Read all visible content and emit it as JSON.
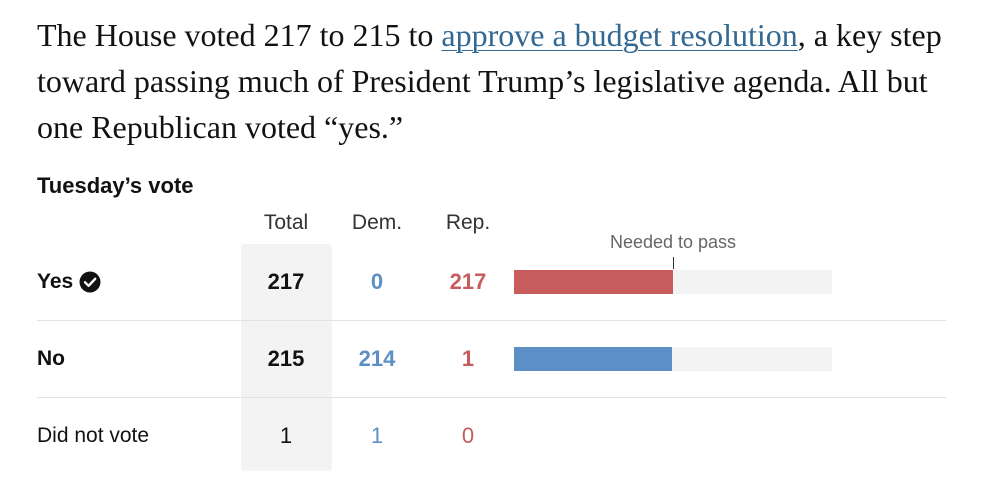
{
  "intro": {
    "before_link": "The House voted 217 to 215 to ",
    "link_text": "approve a budget resolution",
    "after_link": ", a key step toward passing much of President Trump’s legislative agenda. All but one Republican voted “yes.”"
  },
  "table": {
    "title": "Tuesday’s vote",
    "columns": {
      "total": "Total",
      "dem": "Dem.",
      "rep": "Rep."
    },
    "needed_label": "Needed to pass",
    "house_size": 433,
    "needed_to_pass": 217,
    "rows": [
      {
        "label": "Yes",
        "total": "217",
        "dem": "0",
        "rep": "217",
        "passed": true,
        "bar_color": "#c65c5b"
      },
      {
        "label": "No",
        "total": "215",
        "dem": "214",
        "rep": "1",
        "passed": false,
        "bar_color": "#5c8fc6"
      },
      {
        "label": "Did not vote",
        "total": "1",
        "dem": "1",
        "rep": "0",
        "passed": false
      }
    ]
  },
  "icons": {
    "yes_row": "checkmark-circle-icon"
  },
  "colors": {
    "link": "#326891",
    "democrat": "#5c8fc6",
    "republican": "#c65c5b",
    "bar_track": "#f3f3f3"
  }
}
